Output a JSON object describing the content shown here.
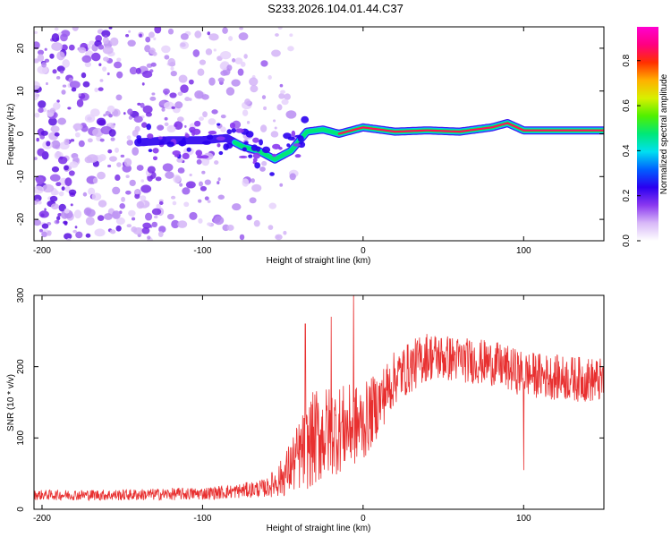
{
  "chart_data": [
    {
      "type": "heatmap",
      "title": "S233.2026.104.01.44.C37",
      "xlabel": "Height of straight line (km)",
      "ylabel": "Frequency (Hz)",
      "xlim": [
        -205,
        150
      ],
      "ylim": [
        -25,
        25
      ],
      "xticks": [
        -200,
        -100,
        0,
        100
      ],
      "yticks": [
        -20,
        -10,
        0,
        10,
        20
      ],
      "colorbar": {
        "label": "Normalized spectral amplitude",
        "range": [
          0,
          0.95
        ],
        "ticks": [
          "0.0",
          "0.2",
          "0.4",
          "0.6",
          "0.8"
        ],
        "tick_values": [
          0,
          0.2,
          0.4,
          0.6,
          0.8
        ],
        "colors": [
          "#ffffff",
          "#d8b8f8",
          "#8a38f0",
          "#2a00f0",
          "#0060ff",
          "#00e0f0",
          "#00e878",
          "#50f000",
          "#d8f000",
          "#ffb000",
          "#ff3000",
          "#ff0080",
          "#ff00d0"
        ]
      },
      "ridge": {
        "x": [
          -140,
          -120,
          -100,
          -85,
          -75,
          -65,
          -55,
          -45,
          -35,
          -25,
          -15,
          0,
          20,
          40,
          60,
          80,
          90,
          100,
          120,
          150
        ],
        "y": [
          -2,
          -1.5,
          -1.5,
          -1,
          -3,
          -4,
          -6,
          -4,
          0.5,
          1,
          0,
          1.5,
          0.5,
          0.8,
          0.5,
          1.5,
          2.5,
          0.8,
          0.8,
          0.8
        ]
      },
      "noise_region": [
        -205,
        -40
      ]
    },
    {
      "type": "line",
      "xlabel": "Height of straight line (km)",
      "ylabel": "SNR (10 * v/v)",
      "xlim": [
        -205,
        150
      ],
      "ylim": [
        0,
        300
      ],
      "xticks": [
        -200,
        -100,
        0,
        100
      ],
      "yticks": [
        0,
        100,
        200,
        300
      ],
      "color": "#e83030",
      "envelope": {
        "x": [
          -205,
          -150,
          -100,
          -80,
          -60,
          -50,
          -40,
          -30,
          -20,
          -10,
          0,
          10,
          20,
          40,
          60,
          80,
          100,
          120,
          150
        ],
        "mean": [
          20,
          20,
          22,
          25,
          30,
          45,
          75,
          100,
          110,
          115,
          120,
          150,
          185,
          215,
          210,
          205,
          190,
          185,
          180
        ],
        "spread": [
          7,
          8,
          9,
          10,
          13,
          28,
          50,
          70,
          65,
          60,
          55,
          45,
          38,
          35,
          32,
          32,
          32,
          32,
          32
        ]
      },
      "spikes": [
        [
          -36,
          260
        ],
        [
          -20,
          270
        ],
        [
          -6,
          310
        ],
        [
          100,
          55
        ]
      ]
    }
  ]
}
